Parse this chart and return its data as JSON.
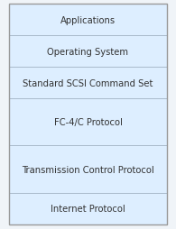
{
  "layers": [
    "Applications",
    "Operating System",
    "Standard SCSI Command Set",
    "FC-4/C Protocol",
    "Transmission Control Protocol",
    "Internet Protocol"
  ],
  "box_facecolor": "#ddeeff",
  "box_edgecolor": "#aabbcc",
  "text_color": "#333333",
  "bg_color": "#f0f4f8",
  "fig_width": 1.95,
  "fig_height": 2.55,
  "font_size": 7.2,
  "layer_heights": [
    1.0,
    1.0,
    1.0,
    1.5,
    1.5,
    1.0
  ],
  "outer_edge_color": "#999999"
}
